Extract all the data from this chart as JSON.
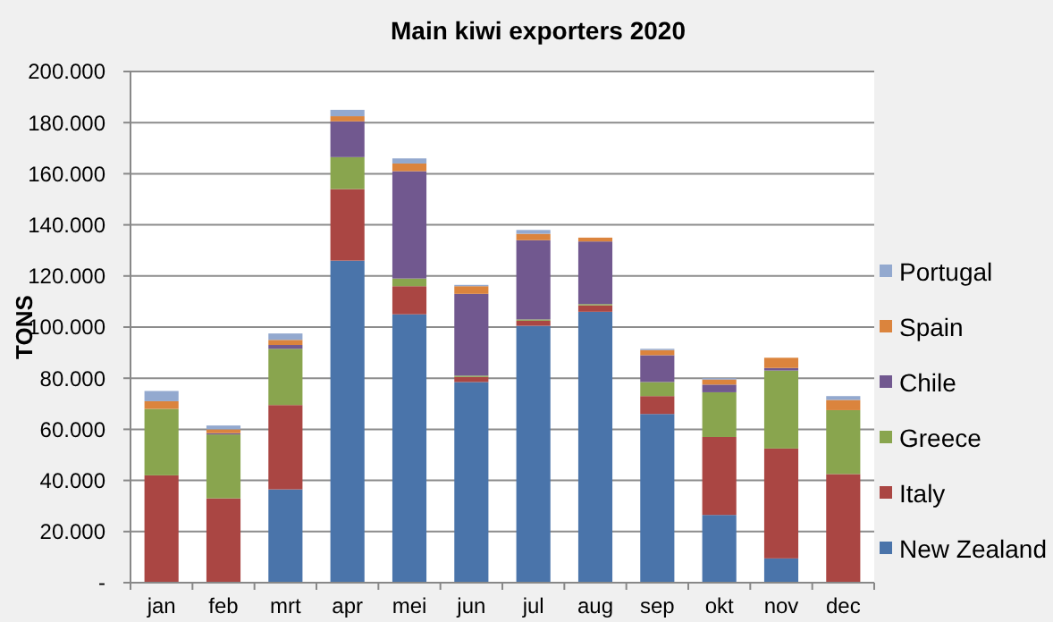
{
  "chart_data": {
    "type": "bar",
    "stacked": true,
    "title": "Main kiwi exporters 2020",
    "ylabel": "TONS",
    "categories": [
      "jan",
      "feb",
      "mrt",
      "apr",
      "mei",
      "jun",
      "jul",
      "aug",
      "sep",
      "okt",
      "nov",
      "dec"
    ],
    "series": [
      {
        "name": "New Zealand",
        "color": "#4a74aa",
        "values": [
          0,
          0,
          36500,
          126000,
          105000,
          78500,
          100500,
          106000,
          66000,
          26500,
          9500,
          0
        ]
      },
      {
        "name": "Italy",
        "color": "#aa4643",
        "values": [
          42000,
          33000,
          33000,
          28000,
          11000,
          2000,
          2000,
          2500,
          7000,
          30500,
          43000,
          42500
        ]
      },
      {
        "name": "Greece",
        "color": "#89a54e",
        "values": [
          26000,
          25000,
          22000,
          12500,
          3000,
          500,
          500,
          500,
          5500,
          17500,
          30500,
          25000
        ]
      },
      {
        "name": "Chile",
        "color": "#71588f",
        "values": [
          0,
          500,
          1500,
          14000,
          42000,
          32000,
          31000,
          24500,
          10500,
          3000,
          1000,
          0
        ]
      },
      {
        "name": "Spain",
        "color": "#db843d",
        "values": [
          3000,
          1500,
          2000,
          2000,
          3000,
          3000,
          2500,
          1500,
          2000,
          2000,
          4000,
          4000
        ]
      },
      {
        "name": "Portugal",
        "color": "#93a9cf",
        "values": [
          4000,
          1500,
          2500,
          2500,
          2000,
          500,
          1500,
          0,
          500,
          500,
          0,
          1500
        ]
      }
    ],
    "ylim": [
      0,
      200000
    ],
    "yticks": [
      {
        "value": 0,
        "label": "-"
      },
      {
        "value": 20000,
        "label": "20.000"
      },
      {
        "value": 40000,
        "label": "40.000"
      },
      {
        "value": 60000,
        "label": "60.000"
      },
      {
        "value": 80000,
        "label": "80.000"
      },
      {
        "value": 100000,
        "label": "100.000"
      },
      {
        "value": 120000,
        "label": "120.000"
      },
      {
        "value": 140000,
        "label": "140.000"
      },
      {
        "value": 160000,
        "label": "160.000"
      },
      {
        "value": 180000,
        "label": "180.000"
      },
      {
        "value": 200000,
        "label": "200.000"
      }
    ],
    "grid": "y",
    "legend": "right"
  }
}
